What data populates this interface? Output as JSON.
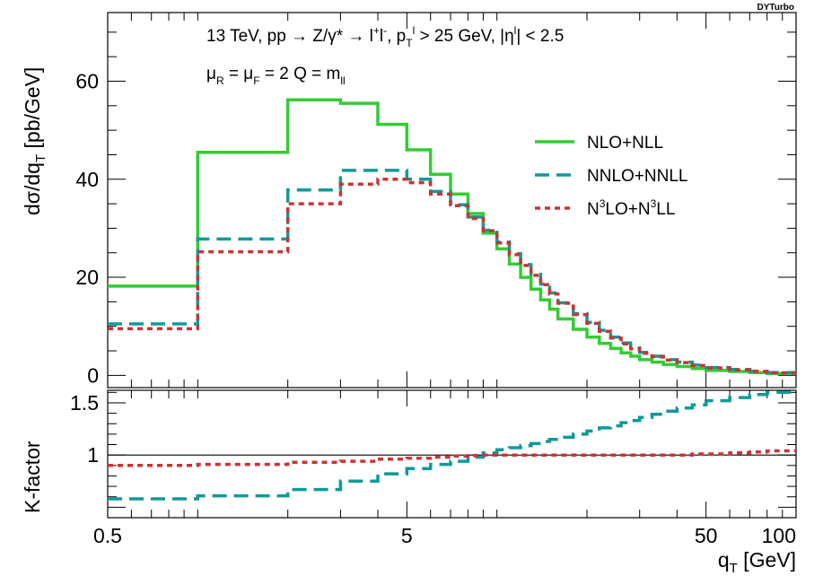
{
  "watermark": "DYTurbo",
  "chart_data": {
    "type": "line",
    "annotations": {
      "line1": "13 TeV, pp → Z/γ* → l⁺l⁻, p_T^l > 25 GeV, |η^l| < 2.5",
      "line2": "μ_R = μ_F = 2 Q = m_ll"
    },
    "legend_position": "right",
    "xlabel": "q_T [GeV]",
    "xscale": "log",
    "xlim": [
      0.5,
      100
    ],
    "xticks": [
      0.5,
      5,
      50,
      100
    ],
    "xtick_labels": [
      "0.5",
      "5",
      "50",
      "100"
    ],
    "grid": false,
    "top": {
      "ylabel": "dσ/dq_T [pb/GeV]",
      "ylim": [
        -2.5,
        74
      ],
      "yticks": [
        0,
        20,
        40,
        60
      ],
      "ytick_labels": [
        "0",
        "20",
        "40",
        "60"
      ],
      "bin_edges": [
        0.5,
        1,
        2,
        3,
        4,
        5,
        6,
        7,
        8,
        9,
        10,
        11,
        12,
        13,
        14,
        15,
        16,
        18,
        20,
        22,
        24,
        26,
        28,
        30,
        33,
        36,
        40,
        45,
        50,
        60,
        70,
        80,
        100
      ],
      "series": [
        {
          "name": "NLO+NLL",
          "color": "#33cc33",
          "dash": "solid",
          "values": [
            18.2,
            45.5,
            56.2,
            55.5,
            51.2,
            46.0,
            41.0,
            37.0,
            33.0,
            29.0,
            25.8,
            22.7,
            20.0,
            17.6,
            15.4,
            13.5,
            11.5,
            9.4,
            7.8,
            6.5,
            5.5,
            4.6,
            3.9,
            3.2,
            2.7,
            2.2,
            1.8,
            1.4,
            1.0,
            0.8,
            0.55,
            0.35
          ]
        },
        {
          "name": "NNLO+NNLL",
          "color": "#119999",
          "dash": "long-dash",
          "values": [
            10.5,
            27.8,
            37.8,
            41.8,
            41.8,
            40.0,
            37.5,
            34.8,
            32.3,
            29.6,
            27.2,
            24.8,
            22.6,
            20.6,
            18.6,
            16.8,
            14.8,
            12.6,
            10.8,
            9.2,
            7.8,
            6.6,
            5.6,
            4.7,
            3.9,
            3.2,
            2.7,
            2.1,
            1.6,
            1.2,
            0.85,
            0.55
          ]
        },
        {
          "name": "N³LO+N³LL",
          "color": "#cc3333",
          "dash": "short-dash",
          "values": [
            9.5,
            25.2,
            35.0,
            39.0,
            40.0,
            39.3,
            37.0,
            34.6,
            32.0,
            29.5,
            27.0,
            24.6,
            22.4,
            20.4,
            18.5,
            16.6,
            14.7,
            12.4,
            10.6,
            9.0,
            7.6,
            6.4,
            5.4,
            4.5,
            3.8,
            3.1,
            2.6,
            2.0,
            1.5,
            1.1,
            0.8,
            0.5
          ]
        }
      ]
    },
    "bottom": {
      "ylabel": "K-factor",
      "ylim": [
        0.4,
        1.62
      ],
      "yticks": [
        1,
        1.5
      ],
      "ytick_labels": [
        "1",
        "1.5"
      ],
      "reference_line": 1,
      "series": [
        {
          "name": "NNLO+NNLL",
          "color": "#119999",
          "dash": "long-dash",
          "values": [
            0.58,
            0.61,
            0.67,
            0.75,
            0.82,
            0.87,
            0.91,
            0.94,
            0.98,
            1.02,
            1.05,
            1.07,
            1.09,
            1.11,
            1.13,
            1.15,
            1.17,
            1.2,
            1.23,
            1.26,
            1.28,
            1.31,
            1.33,
            1.36,
            1.39,
            1.42,
            1.45,
            1.48,
            1.52,
            1.55,
            1.58,
            1.6
          ]
        },
        {
          "name": "N³LO+N³LL",
          "color": "#cc3333",
          "dash": "short-dash",
          "values": [
            0.9,
            0.91,
            0.93,
            0.94,
            0.96,
            0.97,
            0.98,
            0.99,
            0.995,
            1.0,
            1.0,
            1.0,
            1.0,
            1.0,
            1.0,
            1.0,
            1.0,
            1.0,
            1.0,
            1.0,
            1.0,
            1.0,
            1.0,
            1.0,
            1.0,
            1.0,
            1.0,
            1.01,
            1.01,
            1.02,
            1.03,
            1.04
          ]
        }
      ]
    }
  }
}
